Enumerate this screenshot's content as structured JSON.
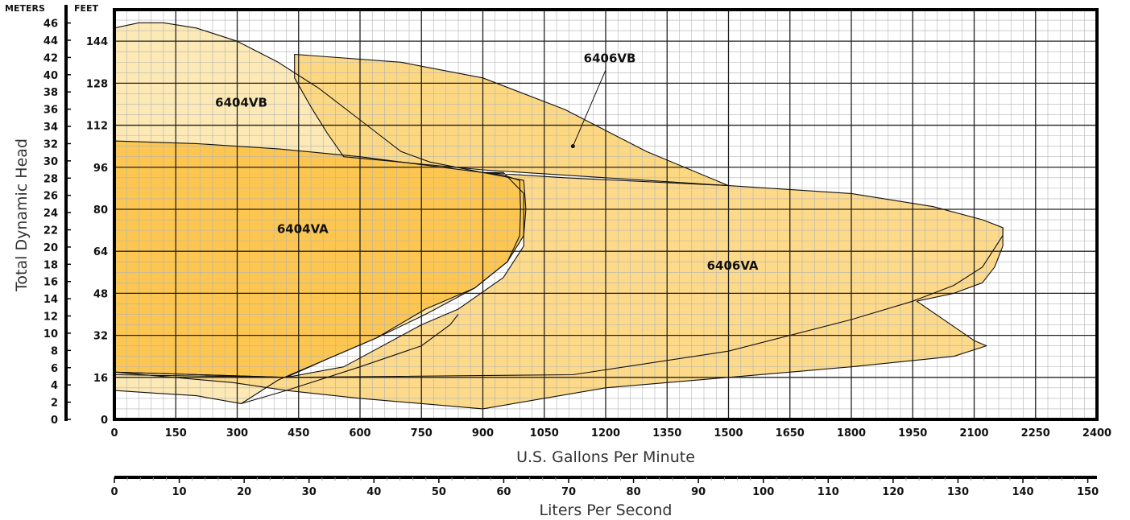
{
  "chart_data": {
    "type": "area",
    "title": "",
    "xlabel": "U.S. Gallons Per Minute",
    "ylabel": "Total Dynamic Head",
    "x2label": "Liters Per Second",
    "y_left_unit": "METERS",
    "y_right_unit": "FEET",
    "xlim": [
      0,
      2400
    ],
    "ylim_feet": [
      0,
      156
    ],
    "x_ticks": [
      "0",
      "150",
      "300",
      "450",
      "600",
      "750",
      "900",
      "1050",
      "1200",
      "1350",
      "1500",
      "1650",
      "1800",
      "1950",
      "2100",
      "2250",
      "2400"
    ],
    "x2_ticks": [
      "0",
      "10",
      "20",
      "30",
      "40",
      "50",
      "60",
      "70",
      "80",
      "90",
      "100",
      "110",
      "120",
      "130",
      "140",
      "150"
    ],
    "feet_ticks": [
      "0",
      "16",
      "32",
      "48",
      "64",
      "80",
      "96",
      "112",
      "128",
      "144"
    ],
    "meter_ticks": [
      "0",
      "2",
      "4",
      "6",
      "8",
      "10",
      "12",
      "14",
      "16",
      "18",
      "20",
      "22",
      "24",
      "26",
      "28",
      "30",
      "32",
      "34",
      "36",
      "38",
      "40",
      "42",
      "44",
      "46"
    ],
    "grid": true,
    "colors": {
      "6404VB": "#fde9b5",
      "6406VB": "#fdd883",
      "6406VA": "#fdd98a",
      "6404VA": "#fcc650",
      "grid_major": "#222222",
      "grid_minor": "#b3b3b3"
    },
    "regions": [
      {
        "name": "6404VB",
        "label_at": [
          310,
          119
        ],
        "boundary": [
          [
            0,
            149
          ],
          [
            60,
            151
          ],
          [
            120,
            151
          ],
          [
            200,
            149
          ],
          [
            300,
            144
          ],
          [
            400,
            136
          ],
          [
            500,
            126
          ],
          [
            600,
            114
          ],
          [
            700,
            102
          ],
          [
            770,
            98
          ],
          [
            900,
            94
          ],
          [
            950,
            93
          ],
          [
            990,
            91
          ],
          [
            992,
            80
          ],
          [
            990,
            70
          ],
          [
            960,
            60
          ],
          [
            880,
            50
          ],
          [
            760,
            40
          ],
          [
            640,
            31
          ],
          [
            520,
            23
          ],
          [
            400,
            15
          ],
          [
            310,
            6
          ],
          [
            200,
            9
          ],
          [
            100,
            10
          ],
          [
            0,
            11
          ]
        ]
      },
      {
        "name": "6406VB",
        "label_at": [
          1210,
          136
        ],
        "boundary": [
          [
            440,
            139
          ],
          [
            700,
            136
          ],
          [
            900,
            130
          ],
          [
            1100,
            118
          ],
          [
            1300,
            102
          ],
          [
            1500,
            89
          ],
          [
            1100,
            93
          ],
          [
            900,
            95
          ],
          [
            560,
            100
          ],
          [
            520,
            109
          ],
          [
            480,
            119
          ],
          [
            440,
            130
          ]
        ]
      },
      {
        "name": "6406VA",
        "label_at": [
          1510,
          57
        ],
        "boundary": [
          [
            900,
            94
          ],
          [
            1100,
            92
          ],
          [
            1500,
            89
          ],
          [
            1800,
            86
          ],
          [
            2000,
            81
          ],
          [
            2120,
            76
          ],
          [
            2170,
            73
          ],
          [
            2170,
            66
          ],
          [
            2150,
            58
          ],
          [
            2120,
            52
          ],
          [
            2050,
            48
          ],
          [
            1960,
            45
          ],
          [
            2100,
            30
          ],
          [
            2130,
            28
          ],
          [
            2050,
            24
          ],
          [
            1800,
            20
          ],
          [
            1500,
            16
          ],
          [
            1200,
            12
          ],
          [
            900,
            4
          ],
          [
            600,
            8
          ],
          [
            420,
            11
          ],
          [
            290,
            14
          ],
          [
            0,
            18
          ],
          [
            0,
            17
          ],
          [
            420,
            16
          ],
          [
            560,
            20
          ],
          [
            750,
            36
          ],
          [
            840,
            42
          ],
          [
            950,
            54
          ],
          [
            1000,
            66
          ],
          [
            1000,
            86
          ],
          [
            950,
            94
          ]
        ]
      },
      {
        "name": "6404VA",
        "label_at": [
          460,
          71
        ],
        "boundary": [
          [
            0,
            106
          ],
          [
            200,
            105
          ],
          [
            400,
            103
          ],
          [
            600,
            100
          ],
          [
            900,
            94
          ],
          [
            1000,
            91
          ],
          [
            1005,
            80
          ],
          [
            1000,
            70
          ],
          [
            960,
            60
          ],
          [
            880,
            50
          ],
          [
            760,
            42
          ],
          [
            640,
            31
          ],
          [
            520,
            23
          ],
          [
            420,
            16
          ],
          [
            0,
            18
          ]
        ]
      }
    ],
    "curves": [
      {
        "name": "6406VA lower limit",
        "points": [
          [
            0,
            18
          ],
          [
            420,
            16
          ],
          [
            1120,
            17
          ],
          [
            1500,
            26
          ],
          [
            1800,
            38
          ],
          [
            1950,
            45
          ],
          [
            2050,
            51
          ],
          [
            2120,
            58
          ],
          [
            2170,
            70
          ],
          [
            2170,
            73
          ]
        ]
      },
      {
        "name": "6404VA lower limit",
        "points": [
          [
            310,
            6
          ],
          [
            420,
            11
          ],
          [
            600,
            20
          ],
          [
            750,
            28
          ],
          [
            820,
            36
          ],
          [
            840,
            40
          ]
        ]
      }
    ],
    "callout": {
      "label": "6406VB",
      "from": [
        1200,
        133
      ],
      "to": [
        1120,
        104
      ]
    }
  }
}
